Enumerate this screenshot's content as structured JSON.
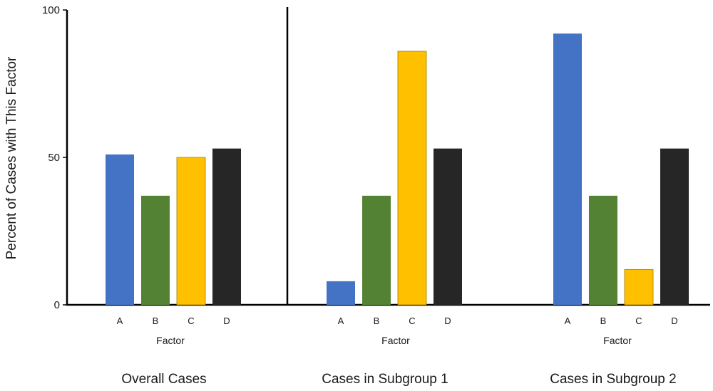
{
  "chart_data": {
    "type": "bar",
    "ylabel": "Percent of Cases with This Factor",
    "ylim": [
      0,
      100
    ],
    "yticks": [
      0,
      50,
      100
    ],
    "grid": false,
    "legend": "none",
    "categories": [
      "A",
      "B",
      "C",
      "D"
    ],
    "colors": [
      "#4472C4",
      "#548235",
      "#FFC000",
      "#262626"
    ],
    "groups": [
      {
        "title": "Overall Cases",
        "xlabel": "Factor",
        "values": [
          51,
          37,
          50,
          53
        ]
      },
      {
        "title": "Cases in Subgroup 1",
        "xlabel": "Factor",
        "values": [
          8,
          37,
          86,
          53
        ]
      },
      {
        "title": "Cases in Subgroup 2",
        "xlabel": "Factor",
        "values": [
          92,
          37,
          12,
          53
        ]
      }
    ]
  }
}
